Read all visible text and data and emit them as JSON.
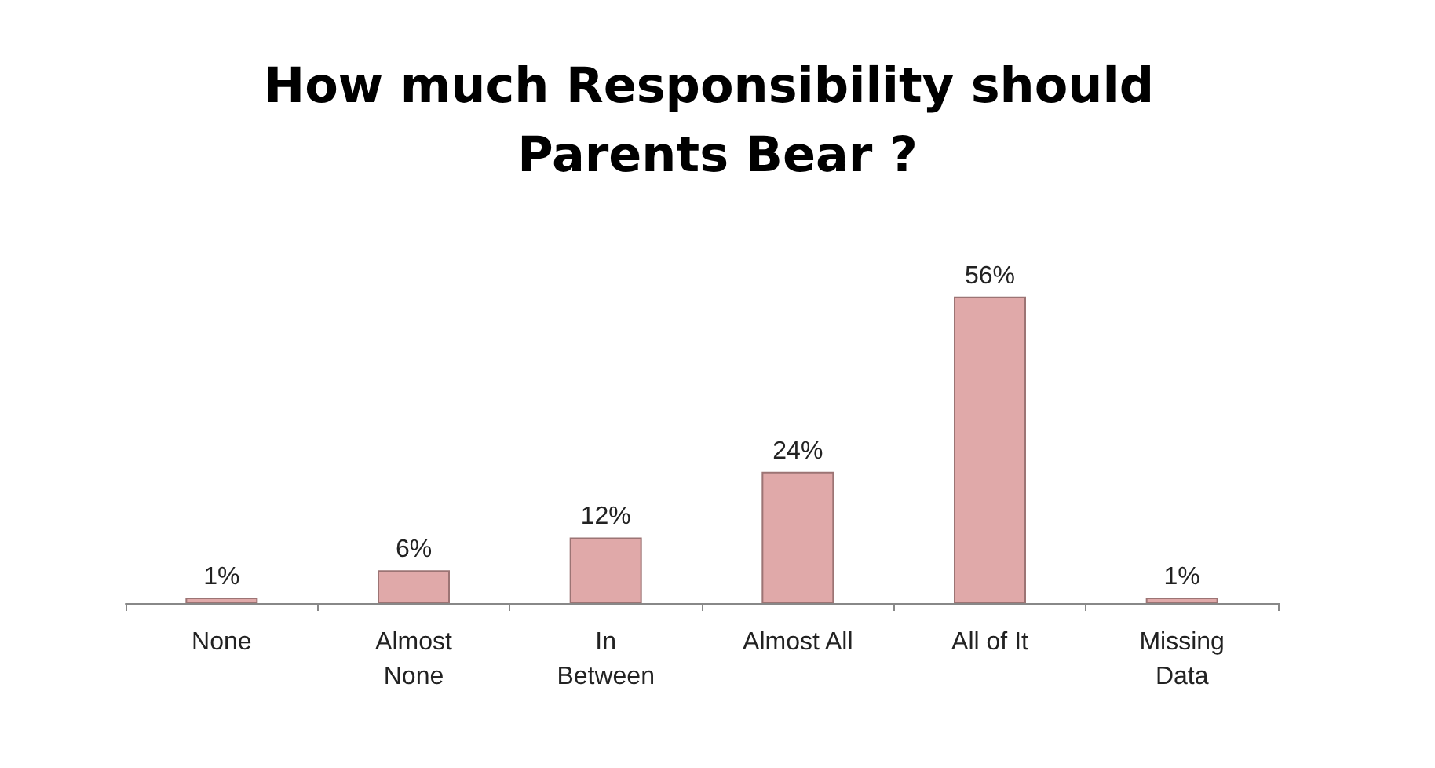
{
  "chart_data": {
    "type": "bar",
    "title": "How much Responsibility should Parents Bear ?",
    "categories": [
      "None",
      "Almost\nNone",
      "In\nBetween",
      "Almost All",
      "All of It",
      "Missing\nData"
    ],
    "values": [
      1,
      6,
      12,
      24,
      56,
      1
    ],
    "value_labels": [
      "1%",
      "6%",
      "12%",
      "24%",
      "56%",
      "1%"
    ],
    "color": "#e0a9a9"
  }
}
